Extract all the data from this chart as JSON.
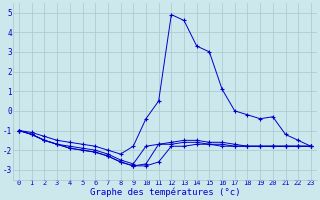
{
  "xlabel": "Graphe des températures (°c)",
  "background_color": "#cce8ec",
  "grid_color": "#a8c8cc",
  "line_color": "#0000cc",
  "xlim": [
    -0.5,
    23.5
  ],
  "ylim": [
    -3.5,
    5.5
  ],
  "yticks": [
    -3,
    -2,
    -1,
    0,
    1,
    2,
    3,
    4,
    5
  ],
  "xticks": [
    0,
    1,
    2,
    3,
    4,
    5,
    6,
    7,
    8,
    9,
    10,
    11,
    12,
    13,
    14,
    15,
    16,
    17,
    18,
    19,
    20,
    21,
    22,
    23
  ],
  "hours": [
    0,
    1,
    2,
    3,
    4,
    5,
    6,
    7,
    8,
    9,
    10,
    11,
    12,
    13,
    14,
    15,
    16,
    17,
    18,
    19,
    20,
    21,
    22,
    23
  ],
  "series1": [
    -1.0,
    -1.1,
    -1.3,
    -1.5,
    -1.6,
    -1.7,
    -1.8,
    -2.0,
    -2.2,
    -1.8,
    -0.4,
    0.5,
    4.9,
    4.6,
    3.3,
    3.0,
    1.1,
    0.0,
    -0.2,
    -0.4,
    -0.3,
    -1.2,
    -1.5,
    -1.8
  ],
  "series2": [
    -1.0,
    -1.2,
    -1.5,
    -1.7,
    -1.8,
    -1.9,
    -2.0,
    -2.2,
    -2.5,
    -2.7,
    -1.8,
    -1.7,
    -1.7,
    -1.6,
    -1.6,
    -1.7,
    -1.7,
    -1.8,
    -1.8,
    -1.8,
    -1.8,
    -1.8,
    -1.8,
    -1.8
  ],
  "series3": [
    -1.0,
    -1.2,
    -1.5,
    -1.7,
    -1.9,
    -2.0,
    -2.1,
    -2.3,
    -2.6,
    -2.8,
    -2.7,
    -1.7,
    -1.6,
    -1.5,
    -1.5,
    -1.6,
    -1.6,
    -1.7,
    -1.8,
    -1.8,
    -1.8,
    -1.8,
    -1.8,
    -1.8
  ],
  "series4": [
    -1.0,
    -1.2,
    -1.5,
    -1.7,
    -1.9,
    -2.0,
    -2.1,
    -2.3,
    -2.6,
    -2.8,
    -2.8,
    -2.6,
    -1.8,
    -1.8,
    -1.7,
    -1.7,
    -1.8,
    -1.8,
    -1.8,
    -1.8,
    -1.8,
    -1.8,
    -1.8,
    -1.8
  ]
}
